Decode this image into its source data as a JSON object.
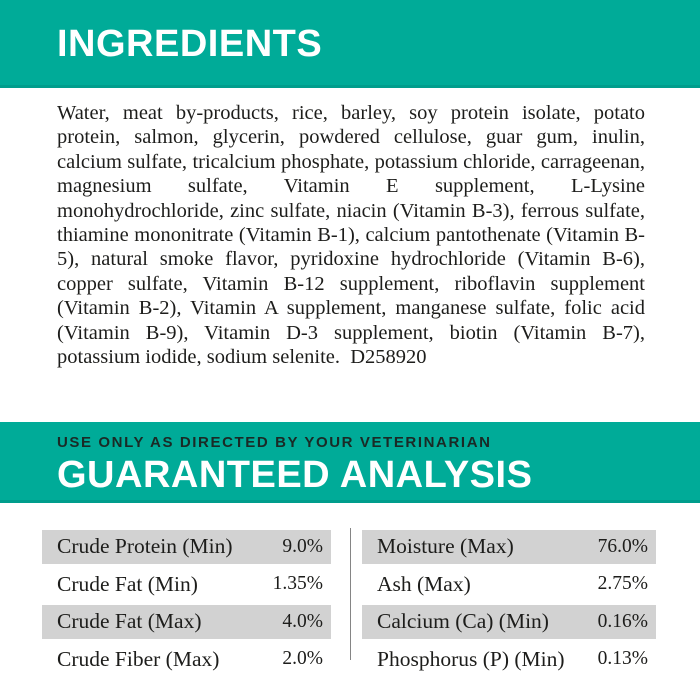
{
  "colors": {
    "banner": "#00ab98",
    "row_shade": "#d2d2d2",
    "title_text": "#ffffff",
    "directive_text": "#1a2a26",
    "body_text": "#1d1d1b"
  },
  "ingredients": {
    "title": "INGREDIENTS",
    "text": "Water, meat by-products, rice, barley, soy protein isolate, potato protein, salmon, glycerin, powdered cellulose, guar gum, inulin, calcium sulfate, tricalcium phosphate, potassium chloride, carrageenan, magnesium sulfate, Vitamin E supplement, L-Lysine monohydrochloride, zinc sulfate, niacin (Vitamin B-3), ferrous sulfate, thiamine mononitrate (Vitamin B-1), calcium pantothenate (Vitamin B-5), natural smoke flavor, pyridoxine hydrochloride (Vitamin B-6), copper sulfate, Vitamin B-12 supplement, riboflavin supplement (Vitamin B-2), Vitamin A supplement, manganese sulfate, folic acid (Vitamin B-9), Vitamin D-3 supplement, biotin (Vitamin B-7), potassium iodide, sodium selenite.  D258920"
  },
  "analysis": {
    "directive": "USE ONLY AS DIRECTED BY YOUR VETERINARIAN",
    "title": "GUARANTEED ANALYSIS",
    "left": [
      {
        "label": "Crude Protein (Min)",
        "value": "9.0%"
      },
      {
        "label": "Crude Fat (Min)",
        "value": "1.35%"
      },
      {
        "label": "Crude Fat (Max)",
        "value": "4.0%"
      },
      {
        "label": "Crude Fiber (Max)",
        "value": "2.0%"
      }
    ],
    "right": [
      {
        "label": "Moisture (Max)",
        "value": "76.0%"
      },
      {
        "label": "Ash (Max)",
        "value": "2.75%"
      },
      {
        "label": "Calcium (Ca) (Min)",
        "value": "0.16%"
      },
      {
        "label": "Phosphorus (P) (Min)",
        "value": "0.13%"
      }
    ]
  }
}
